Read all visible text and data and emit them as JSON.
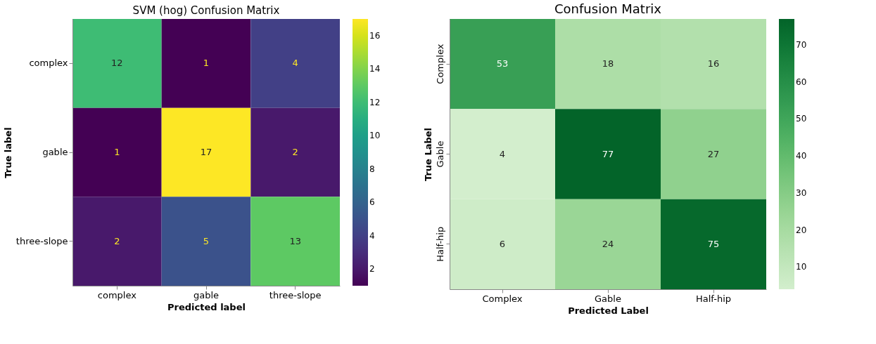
{
  "chart_data": [
    {
      "type": "heatmap",
      "title": "SVM (hog) Confusion Matrix",
      "xlabel": "Predicted label",
      "ylabel": "True label",
      "categories": [
        "complex",
        "gable",
        "three-slope"
      ],
      "y_categories": [
        "complex",
        "gable",
        "three-slope"
      ],
      "cells": [
        [
          12,
          1,
          4
        ],
        [
          1,
          17,
          2
        ],
        [
          2,
          5,
          13
        ]
      ],
      "data_labels": true,
      "clim": [
        1,
        17
      ],
      "cticks": [
        2,
        4,
        6,
        8,
        10,
        12,
        14,
        16
      ]
    },
    {
      "type": "heatmap",
      "title": "Confusion Matrix",
      "xlabel": "Predicted Label",
      "ylabel": "True Label",
      "categories": [
        "Complex",
        "Gable",
        "Half-hip"
      ],
      "y_categories": [
        "Complex",
        "Gable",
        "Half-hip"
      ],
      "cells": [
        [
          53,
          18,
          16
        ],
        [
          4,
          77,
          27
        ],
        [
          6,
          24,
          75
        ]
      ],
      "data_labels": true,
      "clim": [
        4,
        77
      ],
      "cticks": [
        10,
        20,
        30,
        40,
        50,
        60,
        70
      ]
    }
  ]
}
